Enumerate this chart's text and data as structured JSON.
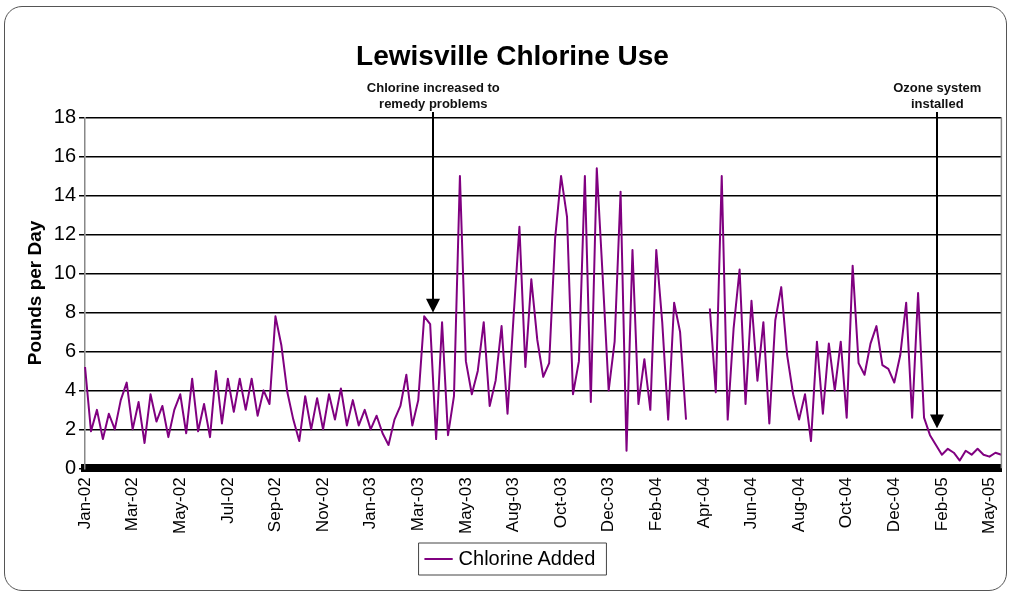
{
  "chart_data": {
    "type": "line",
    "title": "Lewisville Chlorine Use",
    "ylabel": "Pounds per Day",
    "categories": [
      "Jan-02",
      null,
      null,
      null,
      null,
      null,
      null,
      null,
      "Mar-02",
      null,
      null,
      null,
      null,
      null,
      null,
      null,
      "May-02",
      null,
      null,
      null,
      null,
      null,
      null,
      null,
      "Jul-02",
      null,
      null,
      null,
      null,
      null,
      null,
      null,
      "Sep-02",
      null,
      null,
      null,
      null,
      null,
      null,
      null,
      "Nov-02",
      null,
      null,
      null,
      null,
      null,
      null,
      null,
      "Jan-03",
      null,
      null,
      null,
      null,
      null,
      null,
      null,
      "Mar-03",
      null,
      null,
      null,
      null,
      null,
      null,
      null,
      "May-03",
      null,
      null,
      null,
      null,
      null,
      null,
      null,
      "Aug-03",
      null,
      null,
      null,
      null,
      null,
      null,
      null,
      "Oct-03",
      null,
      null,
      null,
      null,
      null,
      null,
      null,
      "Dec-03",
      null,
      null,
      null,
      null,
      null,
      null,
      null,
      "Feb-04",
      null,
      null,
      null,
      null,
      null,
      null,
      null,
      "Apr-04",
      null,
      null,
      null,
      null,
      null,
      null,
      null,
      "Jun-04",
      null,
      null,
      null,
      null,
      null,
      null,
      null,
      "Aug-04",
      null,
      null,
      null,
      null,
      null,
      null,
      null,
      "Oct-04",
      null,
      null,
      null,
      null,
      null,
      null,
      null,
      "Dec-04",
      null,
      null,
      null,
      null,
      null,
      null,
      null,
      "Feb-05",
      null,
      null,
      null,
      null,
      null,
      null,
      null,
      "May-05",
      null,
      null
    ],
    "series": [
      {
        "name": "Chlorine Added",
        "color": "#800080",
        "values": [
          5.2,
          1.9,
          3.0,
          1.5,
          2.8,
          2.0,
          3.5,
          4.4,
          2.0,
          3.4,
          1.3,
          3.8,
          2.4,
          3.2,
          1.6,
          3.0,
          3.8,
          1.8,
          4.6,
          1.9,
          3.3,
          1.6,
          5.0,
          2.3,
          4.6,
          2.9,
          4.6,
          3.0,
          4.6,
          2.7,
          4.0,
          3.3,
          7.8,
          6.3,
          3.9,
          2.5,
          1.4,
          3.7,
          2.0,
          3.6,
          2.0,
          3.8,
          2.5,
          4.1,
          2.2,
          3.5,
          2.2,
          3.0,
          2.0,
          2.7,
          1.8,
          1.2,
          2.5,
          3.2,
          4.8,
          2.2,
          3.5,
          7.8,
          7.4,
          1.5,
          7.5,
          1.7,
          3.7,
          15.0,
          5.5,
          3.8,
          5.0,
          7.5,
          3.2,
          4.5,
          7.3,
          2.8,
          7.7,
          12.4,
          5.2,
          9.7,
          6.6,
          4.7,
          5.4,
          11.8,
          15.0,
          12.9,
          3.8,
          5.5,
          15.0,
          3.4,
          15.4,
          9.8,
          4.0,
          6.5,
          14.2,
          0.9,
          11.2,
          3.3,
          5.6,
          3.0,
          11.2,
          7.5,
          2.5,
          8.5,
          7.0,
          2.5,
          null,
          null,
          null,
          8.2,
          3.9,
          15.0,
          2.5,
          7.2,
          10.2,
          3.3,
          8.6,
          4.5,
          7.5,
          2.3,
          7.6,
          9.3,
          5.8,
          3.8,
          2.5,
          3.8,
          1.4,
          6.5,
          2.8,
          6.4,
          4.0,
          6.5,
          2.6,
          10.4,
          5.4,
          4.8,
          6.4,
          7.3,
          5.3,
          5.1,
          4.4,
          5.8,
          8.5,
          2.6,
          9.0,
          2.6,
          1.7,
          1.2,
          0.7,
          1.0,
          0.8,
          0.4,
          0.9,
          0.7,
          1.0,
          0.7,
          0.6,
          0.8,
          0.7
        ]
      }
    ],
    "ylim": [
      0,
      18
    ],
    "yticks": [
      0,
      2,
      4,
      6,
      8,
      10,
      12,
      14,
      16,
      18
    ],
    "grid": "y",
    "legend": "bottom",
    "marker": "none",
    "line_style": "solid",
    "annotations": [
      "Chlorine increased to remedy problems",
      "Ozone system installed"
    ]
  }
}
